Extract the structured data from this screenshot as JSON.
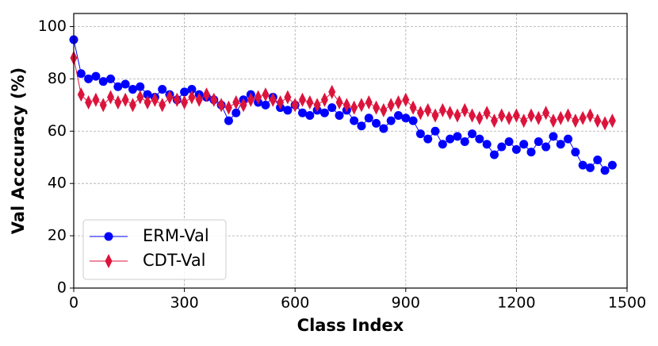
{
  "chart_data": {
    "type": "line",
    "xlabel": "Class Index",
    "ylabel": "Val Acccuracy (%)",
    "x": [
      0,
      20,
      40,
      60,
      80,
      100,
      120,
      140,
      160,
      180,
      200,
      220,
      240,
      260,
      280,
      300,
      320,
      340,
      360,
      380,
      400,
      420,
      440,
      460,
      480,
      500,
      520,
      540,
      560,
      580,
      600,
      620,
      640,
      660,
      680,
      700,
      720,
      740,
      760,
      780,
      800,
      820,
      840,
      860,
      880,
      900,
      920,
      940,
      960,
      980,
      1000,
      1020,
      1040,
      1060,
      1080,
      1100,
      1120,
      1140,
      1160,
      1180,
      1200,
      1220,
      1240,
      1260,
      1280,
      1300,
      1320,
      1340,
      1360,
      1380,
      1400,
      1420,
      1440,
      1460
    ],
    "series": [
      {
        "name": "ERM-Val",
        "color": "#0000ff",
        "marker": "circle",
        "values": [
          95,
          82,
          80,
          81,
          79,
          80,
          77,
          78,
          76,
          77,
          74,
          73,
          76,
          74,
          72,
          75,
          76,
          74,
          73,
          72,
          70,
          64,
          67,
          72,
          74,
          71,
          70,
          73,
          69,
          68,
          70,
          67,
          66,
          68,
          67,
          69,
          66,
          68,
          64,
          62,
          65,
          63,
          61,
          64,
          66,
          65,
          64,
          59,
          57,
          60,
          55,
          57,
          58,
          56,
          59,
          57,
          55,
          51,
          54,
          56,
          53,
          55,
          52,
          56,
          54,
          58,
          55,
          57,
          52,
          47,
          46,
          49,
          45,
          47
        ]
      },
      {
        "name": "CDT-Val",
        "color": "#dc143c",
        "marker": "diamond",
        "values": [
          88,
          74,
          71,
          72,
          70,
          73,
          71,
          72,
          70,
          73,
          71,
          72,
          70,
          73,
          72,
          71,
          73,
          72,
          74,
          72,
          70,
          69,
          71,
          70,
          72,
          73,
          74,
          72,
          71,
          73,
          70,
          72,
          71,
          70,
          72,
          75,
          71,
          70,
          69,
          70,
          71,
          69,
          68,
          70,
          71,
          72,
          69,
          67,
          68,
          66,
          68,
          67,
          66,
          68,
          66,
          65,
          67,
          64,
          66,
          65,
          66,
          64,
          66,
          65,
          67,
          64,
          65,
          66,
          64,
          65,
          66,
          64,
          63,
          64
        ]
      }
    ],
    "xlim": [
      0,
      1500
    ],
    "xticks": [
      0,
      300,
      600,
      900,
      1200,
      1500
    ],
    "ylim": [
      0,
      105
    ],
    "yticks": [
      0,
      20,
      40,
      60,
      80,
      100
    ],
    "grid": true,
    "legend": "lower left"
  }
}
